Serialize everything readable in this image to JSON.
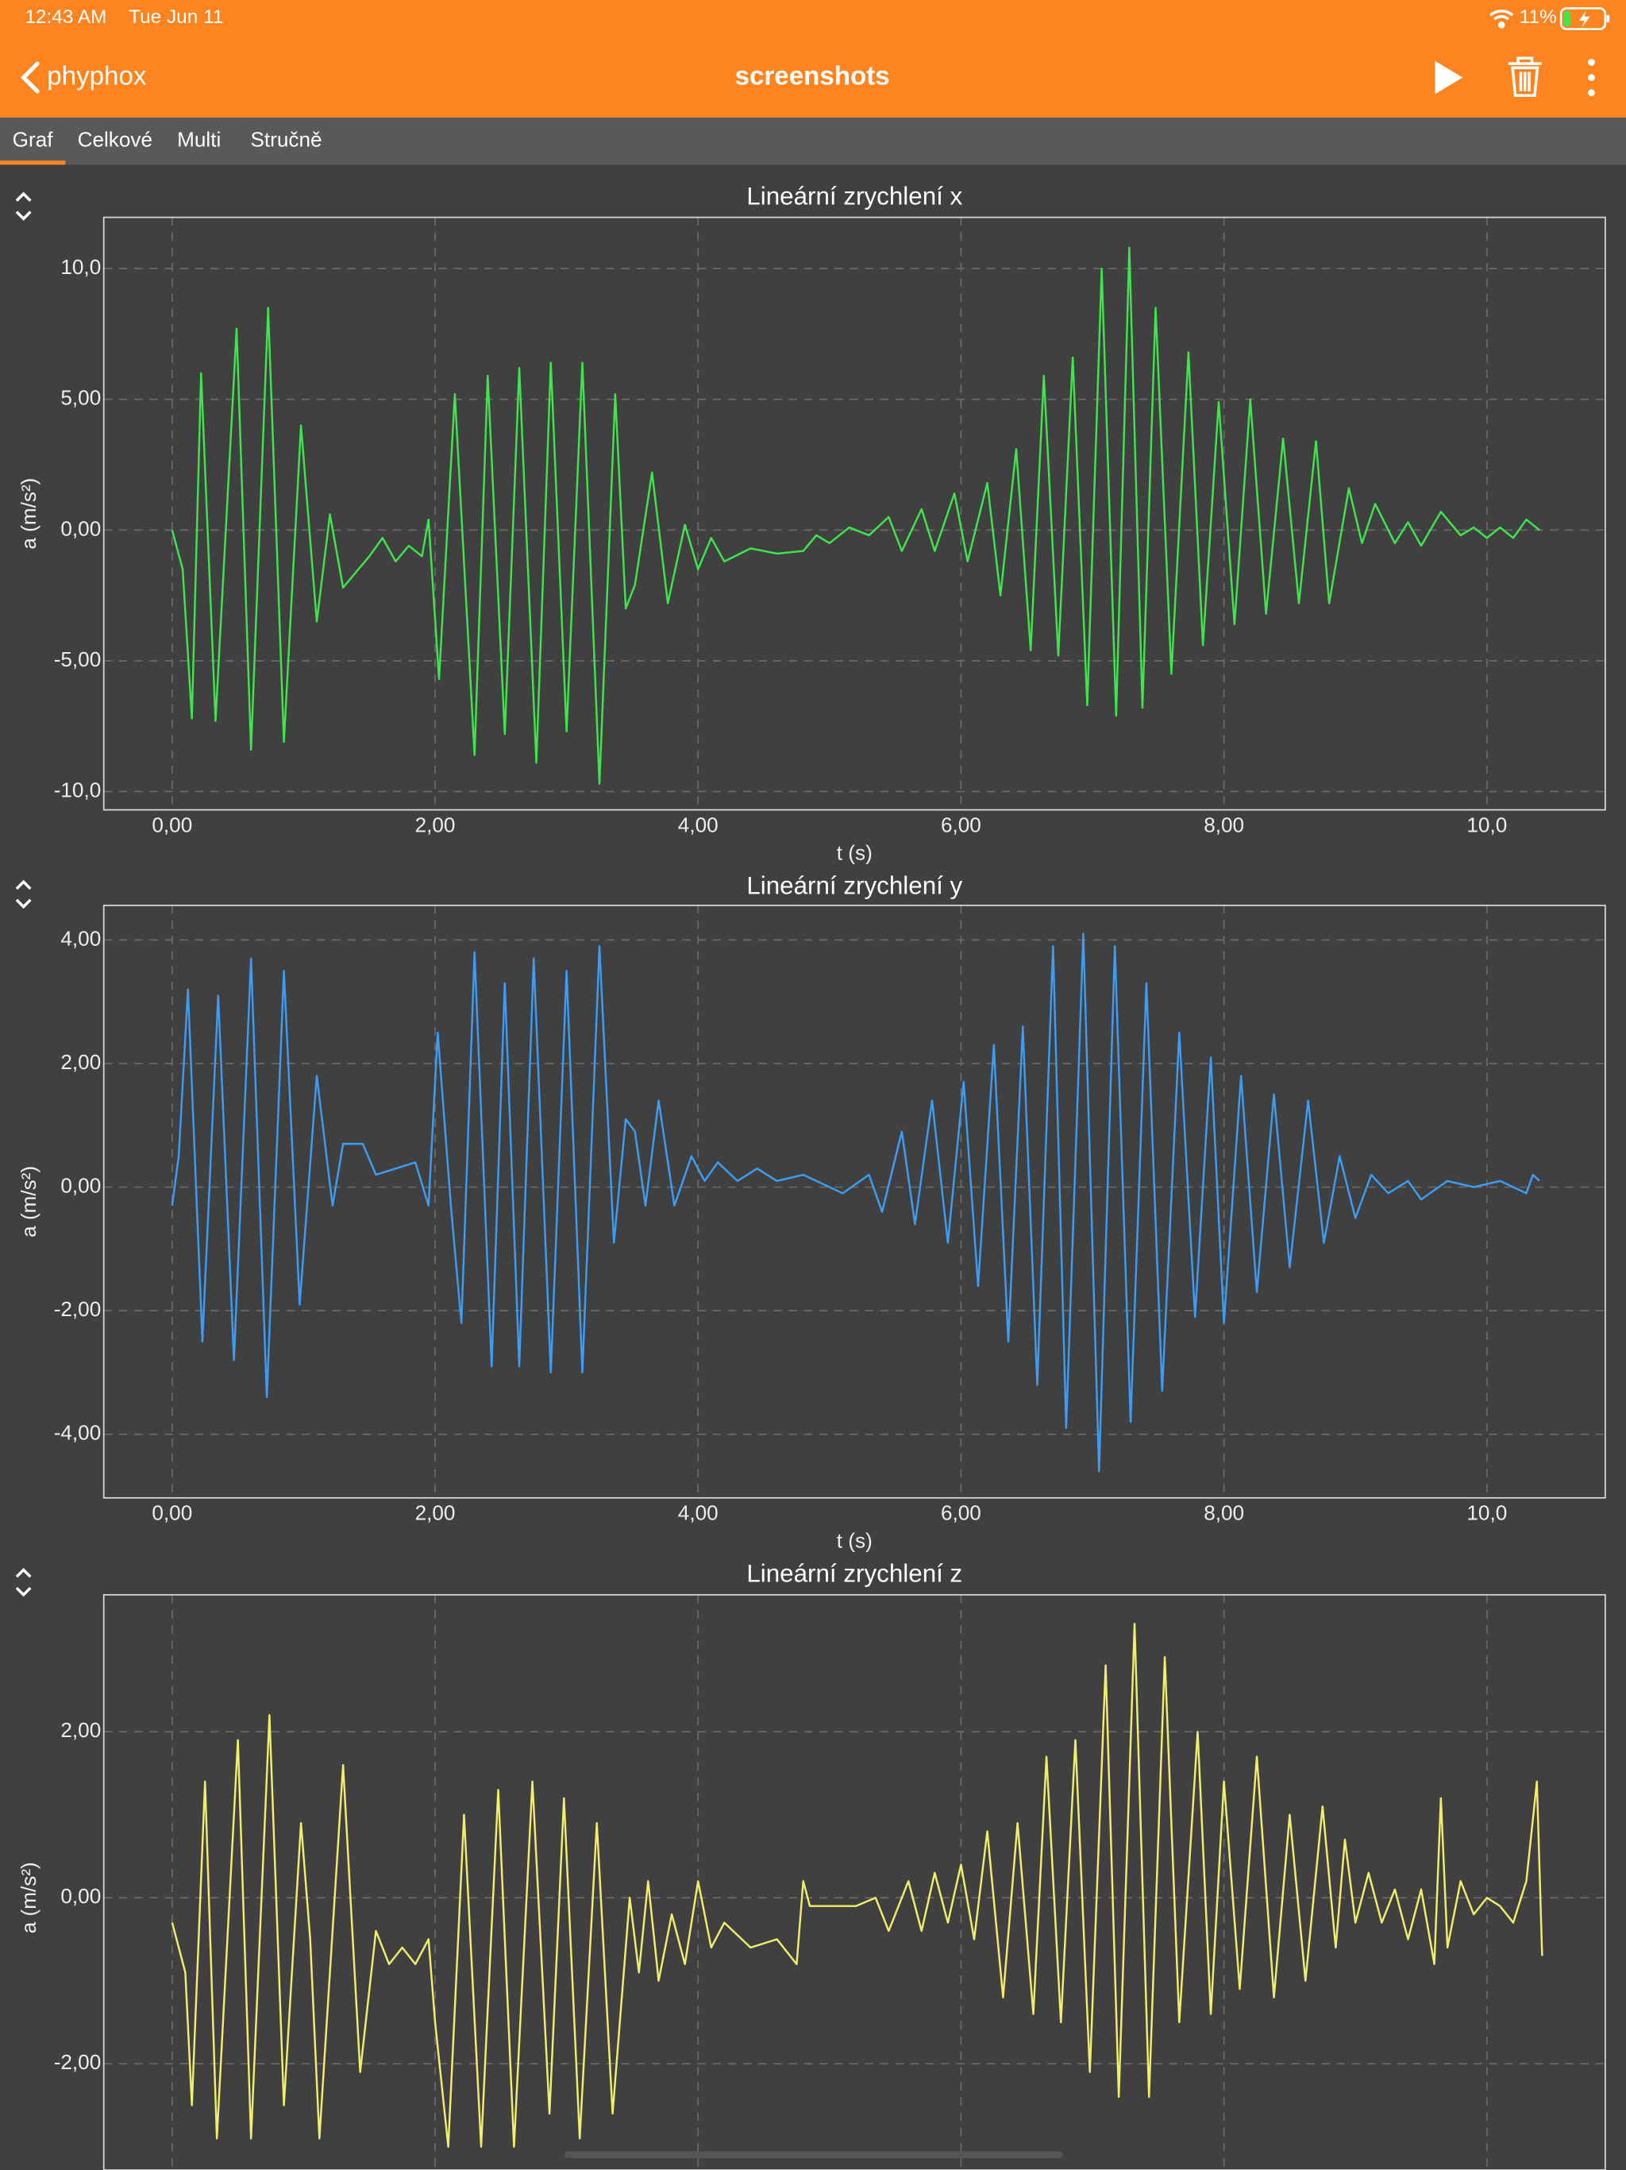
{
  "status_bar": {
    "time": "12:43 AM",
    "date": "Tue Jun 11",
    "battery": "11%"
  },
  "nav": {
    "back": "phyphox",
    "title": "screenshots"
  },
  "tabs": [
    "Graf",
    "Celkové",
    "Multi",
    "Stručně"
  ],
  "chart_data": [
    {
      "type": "line",
      "title": "Lineární zrychlení x",
      "xlabel": "t (s)",
      "ylabel": "a (m/s²)",
      "color": "#3fe54c",
      "grid": true,
      "xlim": [
        -0.52,
        10.9
      ],
      "ylim": [
        -10.7,
        11.96
      ],
      "xticks": [
        {
          "value": 0,
          "label": "0,00"
        },
        {
          "value": 2,
          "label": "2,00"
        },
        {
          "value": 4,
          "label": "4,00"
        },
        {
          "value": 6,
          "label": "6,00"
        },
        {
          "value": 8,
          "label": "8,00"
        },
        {
          "value": 10,
          "label": "10,0"
        }
      ],
      "yticks": [
        {
          "value": -10,
          "label": "-10,0"
        },
        {
          "value": -5,
          "label": "-5,00"
        },
        {
          "value": 0,
          "label": "0,00"
        },
        {
          "value": 5,
          "label": "5,00"
        },
        {
          "value": 10,
          "label": "10,0"
        }
      ],
      "x": [
        0,
        0.08,
        0.15,
        0.22,
        0.33,
        0.49,
        0.6,
        0.73,
        0.85,
        0.98,
        1.1,
        1.2,
        1.3,
        1.5,
        1.6,
        1.7,
        1.8,
        1.9,
        1.95,
        2.03,
        2.15,
        2.3,
        2.4,
        2.53,
        2.64,
        2.77,
        2.88,
        3.0,
        3.12,
        3.25,
        3.37,
        3.45,
        3.52,
        3.65,
        3.77,
        3.9,
        4.0,
        4.1,
        4.2,
        4.4,
        4.6,
        4.8,
        4.9,
        5.0,
        5.15,
        5.3,
        5.45,
        5.55,
        5.7,
        5.8,
        5.95,
        6.05,
        6.2,
        6.3,
        6.42,
        6.53,
        6.63,
        6.74,
        6.85,
        6.96,
        7.07,
        7.18,
        7.28,
        7.38,
        7.48,
        7.6,
        7.73,
        7.84,
        7.96,
        8.08,
        8.2,
        8.32,
        8.45,
        8.57,
        8.7,
        8.8,
        8.95,
        9.05,
        9.15,
        9.3,
        9.4,
        9.5,
        9.65,
        9.8,
        9.9,
        10.0,
        10.1,
        10.2,
        10.3,
        10.4
      ],
      "values": [
        0,
        -1.5,
        -7.2,
        6,
        -7.3,
        7.7,
        -8.4,
        8.5,
        -8.1,
        4,
        -3.5,
        0.6,
        -2.2,
        -1,
        -0.3,
        -1.2,
        -0.6,
        -1,
        0.4,
        -5.7,
        5.2,
        -8.6,
        5.9,
        -7.8,
        6.2,
        -8.9,
        6.4,
        -7.7,
        6.4,
        -9.7,
        5.2,
        -3,
        -2.1,
        2.2,
        -2.8,
        0.2,
        -1.5,
        -0.3,
        -1.2,
        -0.7,
        -0.9,
        -0.8,
        -0.2,
        -0.5,
        0.1,
        -0.2,
        0.5,
        -0.8,
        0.8,
        -0.8,
        1.4,
        -1.2,
        1.8,
        -2.5,
        3.1,
        -4.6,
        5.9,
        -4.8,
        6.6,
        -6.7,
        10,
        -7.1,
        10.8,
        -6.8,
        8.5,
        -5.5,
        6.8,
        -4.4,
        4.9,
        -3.6,
        5,
        -3.2,
        3.5,
        -2.8,
        3.4,
        -2.8,
        1.6,
        -0.5,
        1,
        -0.5,
        0.3,
        -0.6,
        0.7,
        -0.2,
        0.1,
        -0.3,
        0.1,
        -0.3,
        0.4,
        0
      ]
    },
    {
      "type": "line",
      "title": "Lineární zrychlení y",
      "xlabel": "t (s)",
      "ylabel": "a (m/s²)",
      "color": "#3d9df2",
      "grid": true,
      "xlim": [
        -0.52,
        10.9
      ],
      "ylim": [
        -5.03,
        4.56
      ],
      "xticks": [
        {
          "value": 0,
          "label": "0,00"
        },
        {
          "value": 2,
          "label": "2,00"
        },
        {
          "value": 4,
          "label": "4,00"
        },
        {
          "value": 6,
          "label": "6,00"
        },
        {
          "value": 8,
          "label": "8,00"
        },
        {
          "value": 10,
          "label": "10,0"
        }
      ],
      "yticks": [
        {
          "value": -4,
          "label": "-4,00"
        },
        {
          "value": -2,
          "label": "-2,00"
        },
        {
          "value": 0,
          "label": "0,00"
        },
        {
          "value": 2,
          "label": "2,00"
        },
        {
          "value": 4,
          "label": "4,00"
        }
      ],
      "x": [
        0,
        0.05,
        0.12,
        0.23,
        0.35,
        0.47,
        0.6,
        0.72,
        0.85,
        0.97,
        1.1,
        1.22,
        1.3,
        1.45,
        1.55,
        1.7,
        1.85,
        1.95,
        2.02,
        2.12,
        2.2,
        2.3,
        2.43,
        2.53,
        2.64,
        2.75,
        2.88,
        3.0,
        3.12,
        3.25,
        3.36,
        3.45,
        3.52,
        3.6,
        3.7,
        3.82,
        3.95,
        4.05,
        4.15,
        4.3,
        4.45,
        4.6,
        4.8,
        5.0,
        5.1,
        5.3,
        5.4,
        5.55,
        5.65,
        5.78,
        5.9,
        6.02,
        6.13,
        6.25,
        6.36,
        6.47,
        6.58,
        6.7,
        6.8,
        6.93,
        7.05,
        7.17,
        7.29,
        7.41,
        7.53,
        7.66,
        7.78,
        7.9,
        8.0,
        8.13,
        8.25,
        8.38,
        8.5,
        8.64,
        8.76,
        8.88,
        9.0,
        9.12,
        9.25,
        9.4,
        9.5,
        9.7,
        9.9,
        10.1,
        10.3,
        10.35,
        10.4
      ],
      "values": [
        -0.3,
        0.5,
        3.2,
        -2.5,
        3.1,
        -2.8,
        3.7,
        -3.4,
        3.5,
        -1.9,
        1.8,
        -0.3,
        0.7,
        0.7,
        0.2,
        0.3,
        0.4,
        -0.3,
        2.5,
        -0.3,
        -2.2,
        3.8,
        -2.9,
        3.3,
        -2.9,
        3.7,
        -3.0,
        3.5,
        -3.0,
        3.9,
        -0.9,
        1.1,
        0.9,
        -0.3,
        1.4,
        -0.3,
        0.5,
        0.1,
        0.4,
        0.1,
        0.3,
        0.1,
        0.2,
        0,
        -0.1,
        0.2,
        -0.4,
        0.9,
        -0.6,
        1.4,
        -0.9,
        1.7,
        -1.6,
        2.3,
        -2.5,
        2.6,
        -3.2,
        3.9,
        -3.9,
        4.1,
        -4.6,
        3.9,
        -3.8,
        3.3,
        -3.3,
        2.5,
        -2.1,
        2.1,
        -2.2,
        1.8,
        -1.7,
        1.5,
        -1.3,
        1.4,
        -0.9,
        0.5,
        -0.5,
        0.2,
        -0.1,
        0.1,
        -0.2,
        0.1,
        0,
        0.1,
        -0.1,
        0.2,
        0.1
      ]
    },
    {
      "type": "line",
      "title": "Lineární zrychlení z",
      "ylabel": "a (m/s²)",
      "color": "#f0ee6c",
      "grid": true,
      "xlim": [
        -0.52,
        10.9
      ],
      "ylim": [
        -3.28,
        3.65
      ],
      "xticks": [
        0,
        2,
        4,
        6,
        8,
        10
      ],
      "yticks": [
        {
          "value": -2,
          "label": "-2,00"
        },
        {
          "value": 0,
          "label": "0,00"
        },
        {
          "value": 2,
          "label": "2,00"
        }
      ],
      "x": [
        0,
        0.1,
        0.15,
        0.25,
        0.34,
        0.5,
        0.6,
        0.74,
        0.85,
        0.98,
        1.05,
        1.12,
        1.3,
        1.43,
        1.55,
        1.65,
        1.75,
        1.85,
        1.95,
        2.0,
        2.1,
        2.22,
        2.35,
        2.48,
        2.6,
        2.74,
        2.87,
        2.98,
        3.1,
        3.23,
        3.35,
        3.48,
        3.55,
        3.62,
        3.7,
        3.8,
        3.9,
        4.0,
        4.1,
        4.2,
        4.4,
        4.6,
        4.75,
        4.8,
        4.85,
        5.0,
        5.2,
        5.35,
        5.45,
        5.6,
        5.7,
        5.8,
        5.9,
        6.0,
        6.1,
        6.2,
        6.32,
        6.43,
        6.55,
        6.65,
        6.76,
        6.87,
        6.98,
        7.1,
        7.2,
        7.32,
        7.43,
        7.55,
        7.66,
        7.8,
        7.9,
        8.0,
        8.12,
        8.25,
        8.38,
        8.5,
        8.62,
        8.75,
        8.85,
        8.92,
        9.0,
        9.1,
        9.2,
        9.3,
        9.4,
        9.5,
        9.6,
        9.65,
        9.7,
        9.8,
        9.9,
        10.0,
        10.1,
        10.2,
        10.3,
        10.38,
        10.42
      ],
      "values": [
        -0.3,
        -0.9,
        -2.5,
        1.4,
        -2.9,
        1.9,
        -2.9,
        2.2,
        -2.5,
        0.9,
        -0.5,
        -2.9,
        1.6,
        -2.1,
        -0.4,
        -0.8,
        -0.6,
        -0.8,
        -0.5,
        -1.5,
        -3.0,
        1.0,
        -3.0,
        1.3,
        -3.0,
        1.4,
        -2.6,
        1.2,
        -2.9,
        0.9,
        -2.6,
        0,
        -0.9,
        0.2,
        -1.0,
        -0.2,
        -0.8,
        0.2,
        -0.6,
        -0.3,
        -0.6,
        -0.5,
        -0.8,
        0.2,
        -0.1,
        -0.1,
        -0.1,
        0,
        -0.4,
        0.2,
        -0.4,
        0.3,
        -0.3,
        0.4,
        -0.5,
        0.8,
        -1.2,
        0.9,
        -1.4,
        1.7,
        -1.5,
        1.9,
        -2.1,
        2.8,
        -2.4,
        3.3,
        -2.4,
        2.9,
        -1.5,
        2.0,
        -1.4,
        1.4,
        -1.1,
        1.7,
        -1.2,
        1.0,
        -1.0,
        1.1,
        -0.6,
        0.7,
        -0.3,
        0.3,
        -0.3,
        0.1,
        -0.5,
        0.1,
        -0.8,
        1.2,
        -0.6,
        0.2,
        -0.2,
        0,
        -0.1,
        -0.3,
        0.2,
        1.4,
        -0.7
      ]
    }
  ]
}
